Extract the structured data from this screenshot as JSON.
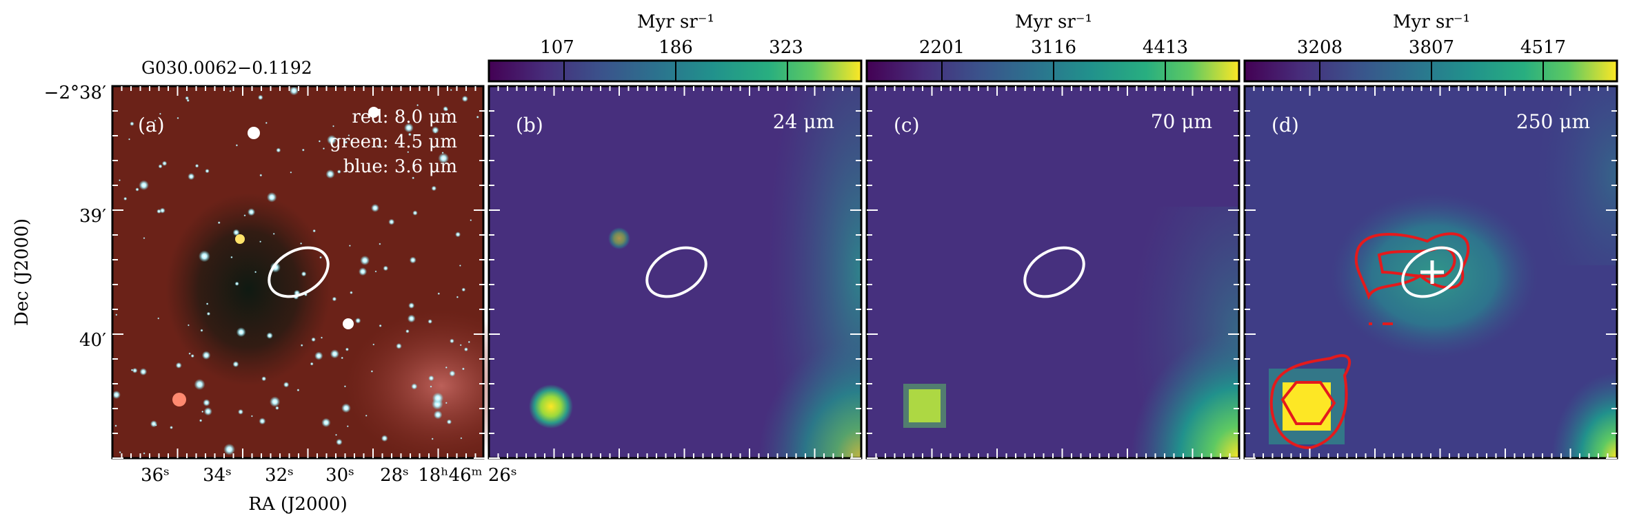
{
  "source_name": "G030.0062−0.1192",
  "axes": {
    "xlabel": "RA (J2000)",
    "ylabel": "Dec (J2000)",
    "ra_ticks": [
      "36ˢ",
      "34ˢ",
      "32ˢ",
      "30ˢ",
      "28ˢ",
      "18ʰ46ᵐ 26ˢ"
    ],
    "dec_ticks": [
      "−2°38′",
      "39′",
      "40′"
    ]
  },
  "panels": [
    {
      "id": "a",
      "label": "(a)",
      "legend": [
        "red: 8.0 μm",
        "green: 4.5 μm",
        "blue: 3.6 μm"
      ]
    },
    {
      "id": "b",
      "label": "(b)",
      "wavelength": "24 μm",
      "colorbar": {
        "unit": "Myr sr⁻¹",
        "ticks": [
          "107",
          "186",
          "323"
        ]
      }
    },
    {
      "id": "c",
      "label": "(c)",
      "wavelength": "70 μm",
      "colorbar": {
        "unit": "Myr sr⁻¹",
        "ticks": [
          "2201",
          "3116",
          "4413"
        ]
      }
    },
    {
      "id": "d",
      "label": "(d)",
      "wavelength": "250 μm",
      "colorbar": {
        "unit": "Myr sr⁻¹",
        "ticks": [
          "3208",
          "3807",
          "4517"
        ]
      }
    }
  ],
  "colors": {
    "viridis_low": "#440154",
    "viridis_mid": "#21918c",
    "viridis_high": "#fde725",
    "ellipse": "#ffffff",
    "contour": "#e41a1c",
    "rgb_background": "#6b2218"
  }
}
